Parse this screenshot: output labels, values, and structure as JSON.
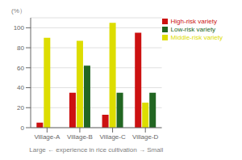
{
  "chart_data": {
    "type": "bar",
    "categories": [
      "Village-A",
      "Village-B",
      "Village-C",
      "Village-D"
    ],
    "series": [
      {
        "name": "High-risk variety",
        "color": "#cc1111",
        "values": [
          5,
          35,
          13,
          95
        ]
      },
      {
        "name": "Middle-risk variety",
        "color": "#dddd00",
        "values": [
          90,
          87,
          105,
          25
        ]
      },
      {
        "name": "Low-risk variety",
        "color": "#226622",
        "values": [
          0,
          62,
          35,
          35
        ]
      }
    ],
    "xlabel": "Large ← experience in rice cultivation → Small",
    "ylabel": "(%）",
    "ylim": [
      0,
      110
    ],
    "yticks": [
      0,
      20,
      40,
      60,
      80,
      100
    ],
    "grid": true,
    "legend": "upper right"
  }
}
